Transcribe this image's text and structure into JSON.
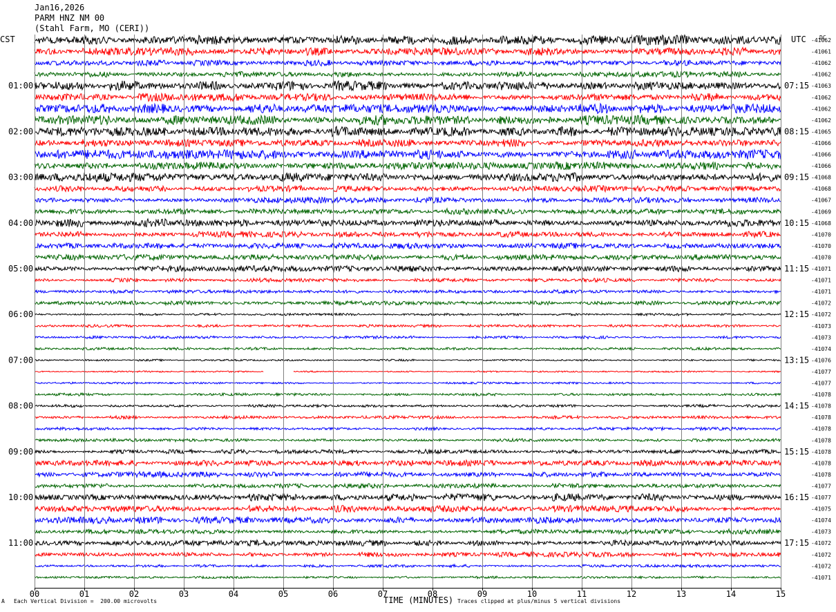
{
  "header": {
    "date": "Jan16,2026",
    "station": "PARM HNZ NM 00",
    "location": "(Stahl Farm, MO (CERI))"
  },
  "left_timezone": "CST",
  "right_timezone": "UTC",
  "dc_label": "DC",
  "footer": {
    "scale_note": "Each Vertical Division =  200.00 microvolts",
    "clip_note": "Traces clipped at plus/minus 5 vertical divisions",
    "corner_mark": "A"
  },
  "colors": {
    "cycle": [
      "#000000",
      "#ff0000",
      "#0000ff",
      "#006400"
    ],
    "grid": "#808080"
  },
  "chart_data": {
    "type": "line",
    "title": "",
    "xlabel": "TIME (MINUTES)",
    "x_ticks": [
      "00",
      "01",
      "02",
      "03",
      "04",
      "05",
      "06",
      "07",
      "08",
      "09",
      "10",
      "11",
      "12",
      "13",
      "14",
      "15"
    ],
    "xlim": [
      0,
      15
    ],
    "rows_per_hour": 4,
    "left_hour_labels": [
      "01:00",
      "02:00",
      "03:00",
      "04:00",
      "05:00",
      "06:00",
      "07:00",
      "08:00",
      "09:00",
      "10:00",
      "11:00"
    ],
    "right_hour_labels": [
      "07:15",
      "08:15",
      "09:15",
      "10:15",
      "11:15",
      "12:15",
      "13:15",
      "14:15",
      "15:15",
      "16:15",
      "17:15"
    ],
    "dc_offsets": [
      -41062,
      -41061,
      -41062,
      -41062,
      -41063,
      -41062,
      -41062,
      -41062,
      -41065,
      -41066,
      -41066,
      -41066,
      -41068,
      -41068,
      -41067,
      -41069,
      -41068,
      -41070,
      -41070,
      -41070,
      -41071,
      -41071,
      -41071,
      -41072,
      -41072,
      -41073,
      -41073,
      -41074,
      -41076,
      -41077,
      -41077,
      -41078,
      -41078,
      -41078,
      -41078,
      -41078,
      -41078,
      -41078,
      -41078,
      -41077,
      -41077,
      -41075,
      -41074,
      -41073,
      -41072,
      -41072,
      -41072,
      -41071
    ],
    "amplitudes": [
      5,
      4,
      3,
      3,
      5,
      4,
      5,
      5,
      5,
      4,
      5,
      4,
      5,
      3,
      3,
      3,
      4,
      3,
      3,
      3,
      3,
      2,
      2,
      2,
      1.2,
      1.4,
      1.4,
      1.4,
      1,
      0.8,
      1,
      1.4,
      1.4,
      1.6,
      1.6,
      1.6,
      2.2,
      3,
      3,
      2.5,
      4,
      3.5,
      3.5,
      2.5,
      3,
      2.5,
      1.5,
      1.2
    ],
    "gap": {
      "row": 29,
      "x_range": [
        4.6,
        5.2
      ]
    }
  }
}
